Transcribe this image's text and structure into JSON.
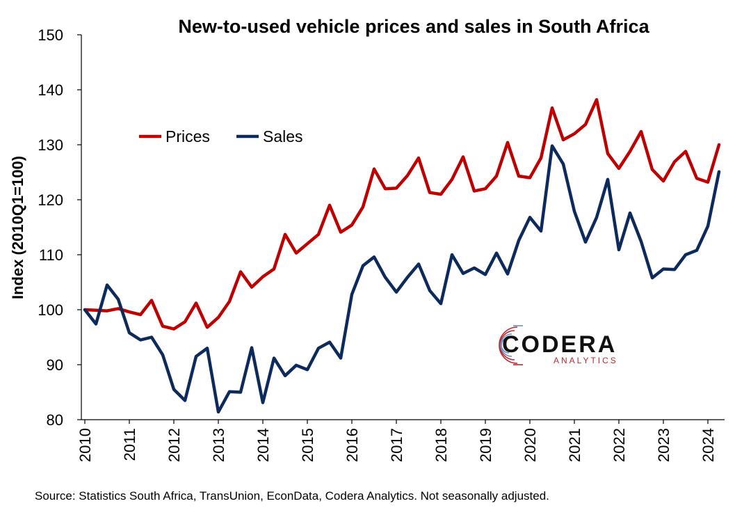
{
  "chart_data": {
    "type": "line",
    "title": "New-to-used vehicle prices and sales in South Africa",
    "ylabel": "Index (2010Q1=100)",
    "xlabel": "",
    "ylim": [
      80,
      150
    ],
    "yticks": [
      "80",
      "90",
      "100",
      "110",
      "120",
      "130",
      "140",
      "150"
    ],
    "xticks": [
      "2010",
      "2011",
      "2012",
      "2013",
      "2014",
      "2015",
      "2016",
      "2017",
      "2018",
      "2019",
      "2020",
      "2021",
      "2022",
      "2023",
      "2024"
    ],
    "x_start": "2010Q1",
    "grid": false,
    "legend_position": "upper-left",
    "series": [
      {
        "name": "Prices",
        "color": "#c00000",
        "values": [
          100,
          99.9,
          99.8,
          100.2,
          99.6,
          99.1,
          101.7,
          97,
          96.5,
          97.8,
          101.2,
          96.8,
          98.6,
          101.5,
          106.9,
          104.1,
          106,
          107.4,
          113.7,
          110.3,
          112,
          113.7,
          119,
          114.1,
          115.4,
          118.7,
          125.6,
          122,
          122.1,
          124.4,
          127.6,
          121.3,
          121.0,
          123.7,
          127.8,
          121.6,
          122,
          124.3,
          130.4,
          124.3,
          124.0,
          127.6,
          136.7,
          130.9,
          132.0,
          133.7,
          138.2,
          128.4,
          125.7,
          128.8,
          132.4,
          125.5,
          123.4,
          126.9,
          128.8,
          123.9,
          123.2,
          130.0
        ]
      },
      {
        "name": "Sales",
        "color": "#0d2a5c",
        "values": [
          100,
          97.4,
          104.5,
          101.9,
          95.8,
          94.5,
          95.0,
          91.8,
          85.5,
          83.5,
          91.5,
          93.0,
          81.4,
          85.1,
          85.0,
          93.1,
          83.1,
          91.2,
          88.0,
          89.9,
          89.1,
          93.0,
          94.1,
          91.2,
          102.8,
          108.0,
          109.6,
          105.9,
          103.2,
          105.9,
          108.3,
          103.5,
          101.1,
          110.0,
          106.6,
          107.6,
          106.4,
          110.3,
          106.5,
          112.6,
          116.8,
          114.3,
          129.8,
          126.5,
          117.9,
          112.3,
          116.8,
          123.7,
          110.9,
          117.6,
          112.4,
          105.8,
          107.4,
          107.3,
          110.0,
          110.8,
          115.2,
          125.1
        ]
      }
    ]
  },
  "source_note": "Source: Statistics South Africa, TransUnion, EconData, Codera Analytics. Not seasonally adjusted.",
  "logo": {
    "name": "CODERA",
    "sub": "ANALYTICS"
  }
}
